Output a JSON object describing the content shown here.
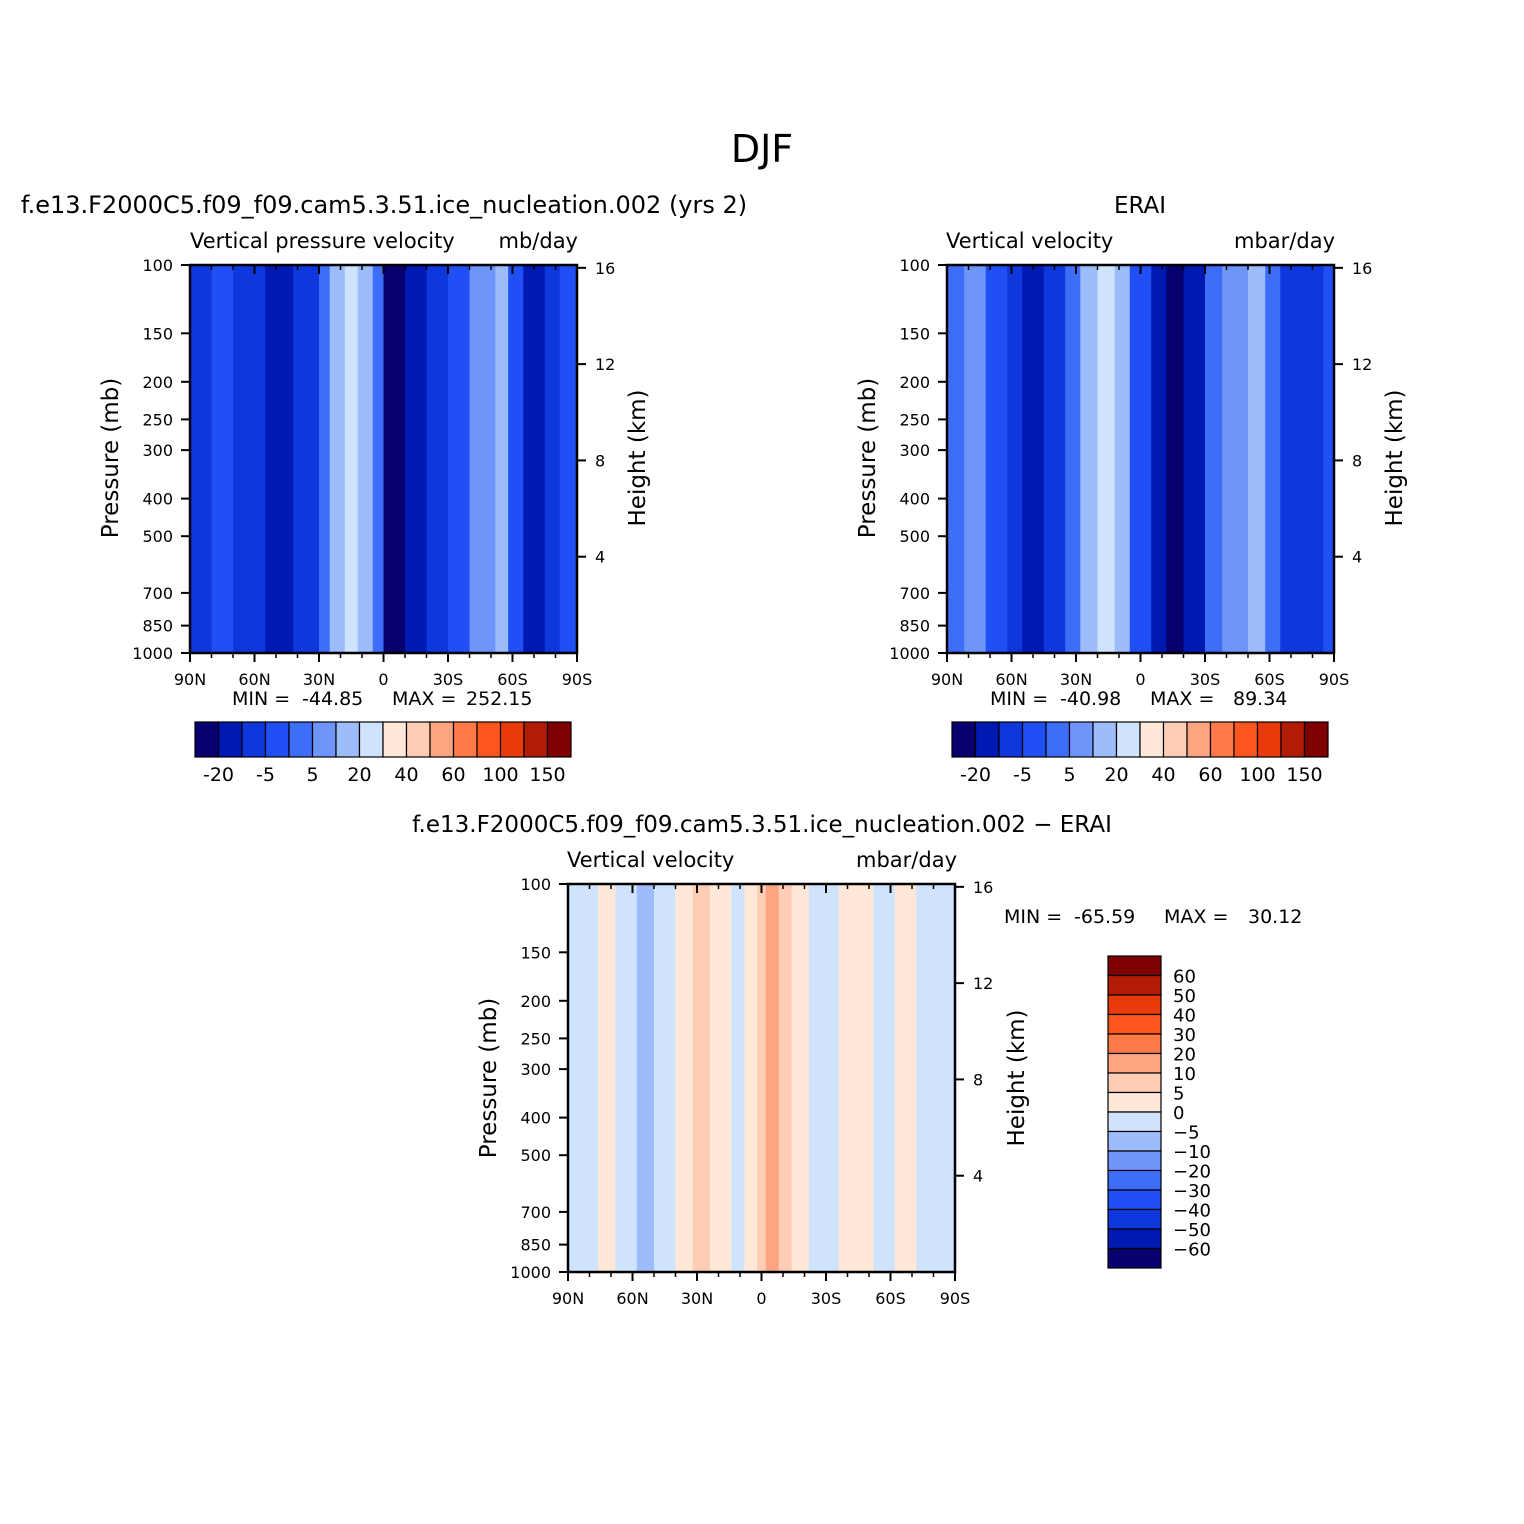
{
  "figure_title": "DJF",
  "colors": {
    "top_scale": [
      "#08006e",
      "#0019b3",
      "#0e37dc",
      "#1f4ff5",
      "#3e6ef8",
      "#6e95f9",
      "#9dbcfb",
      "#cfe3fd",
      "#ffe8d8",
      "#ffcdb3",
      "#fda480",
      "#ff7a47",
      "#ff561f",
      "#e83a0b",
      "#b31c04",
      "#7e0000"
    ],
    "diff_scale": [
      "#08006e",
      "#0019b3",
      "#0e37dc",
      "#1f4ff5",
      "#3e6ef8",
      "#6e95f9",
      "#9dbcfb",
      "#cfe3fd",
      "#ffe8d8",
      "#ffcdb3",
      "#fda480",
      "#ff7a47",
      "#ff561f",
      "#e83a0b",
      "#b31c04",
      "#7e0000"
    ]
  },
  "chart_data": [
    {
      "type": "heatmap",
      "title": "f.e13.F2000C5.f09_f09.cam5.3.51.ice_nucleation.002 (yrs 2)",
      "field_label": "Vertical pressure velocity",
      "units": "mb/day",
      "ylabel": "Pressure (mb)",
      "y2label": "Height (km)",
      "xticks": [
        "90N",
        "60N",
        "30N",
        "0",
        "30S",
        "60S",
        "90S"
      ],
      "yticks": [
        100,
        150,
        200,
        250,
        300,
        400,
        500,
        700,
        850,
        1000
      ],
      "y2ticks": [
        16,
        12,
        8,
        4
      ],
      "ylim": [
        1000,
        100
      ],
      "stats": {
        "min_label": "MIN =",
        "min": "-44.85",
        "max_label": "MAX =",
        "max": "252.15"
      },
      "colorbar": {
        "orientation": "horizontal",
        "labels": [
          "-20",
          "-5",
          "5",
          "20",
          "40",
          "60",
          "100",
          "150"
        ]
      },
      "bands_x": [
        -90,
        -80,
        -70,
        -55,
        -42,
        -30,
        -25,
        -18,
        -12,
        -5,
        0,
        10,
        20,
        30,
        40,
        52,
        58,
        65,
        75,
        82,
        90
      ],
      "bands_levels": [
        2,
        3,
        2,
        1,
        2,
        4,
        6,
        7,
        6,
        4,
        0,
        1,
        2,
        3,
        5,
        6,
        3,
        1,
        2,
        3,
        3
      ]
    },
    {
      "type": "heatmap",
      "title": "ERAI",
      "field_label": "Vertical velocity",
      "units": "mbar/day",
      "ylabel": "Pressure (mb)",
      "y2label": "Height (km)",
      "xticks": [
        "90N",
        "60N",
        "30N",
        "0",
        "30S",
        "60S",
        "90S"
      ],
      "yticks": [
        100,
        150,
        200,
        250,
        300,
        400,
        500,
        700,
        850,
        1000
      ],
      "y2ticks": [
        16,
        12,
        8,
        4
      ],
      "ylim": [
        1000,
        100
      ],
      "stats": {
        "min_label": "MIN =",
        "min": "-40.98",
        "max_label": "MAX =",
        "max": "89.34"
      },
      "colorbar": {
        "orientation": "horizontal",
        "labels": [
          "-20",
          "-5",
          "5",
          "20",
          "40",
          "60",
          "100",
          "150"
        ]
      },
      "bands_x": [
        -90,
        -82,
        -72,
        -62,
        -55,
        -45,
        -35,
        -28,
        -20,
        -12,
        -5,
        5,
        12,
        20,
        30,
        38,
        50,
        58,
        65,
        75,
        85,
        90
      ],
      "bands_levels": [
        4,
        5,
        3,
        2,
        1,
        2,
        4,
        6,
        7,
        6,
        3,
        1,
        0,
        1,
        4,
        5,
        6,
        4,
        2,
        2,
        3,
        3
      ]
    },
    {
      "type": "heatmap",
      "title": "f.e13.F2000C5.f09_f09.cam5.3.51.ice_nucleation.002 − ERAI",
      "field_label": "Vertical velocity",
      "units": "mbar/day",
      "ylabel": "Pressure (mb)",
      "y2label": "Height (km)",
      "xticks": [
        "90N",
        "60N",
        "30N",
        "0",
        "30S",
        "60S",
        "90S"
      ],
      "yticks": [
        100,
        150,
        200,
        250,
        300,
        400,
        500,
        700,
        850,
        1000
      ],
      "y2ticks": [
        16,
        12,
        8,
        4
      ],
      "ylim": [
        1000,
        100
      ],
      "stats": {
        "min_label": "MIN =",
        "min": "-65.59",
        "max_label": "MAX =",
        "max": "30.12"
      },
      "colorbar": {
        "orientation": "vertical",
        "labels": [
          "60",
          "50",
          "40",
          "30",
          "20",
          "10",
          "5",
          "0",
          "−5",
          "−10",
          "−20",
          "−30",
          "−40",
          "−50",
          "−60"
        ]
      },
      "bands_x": [
        -90,
        -76,
        -68,
        -58,
        -50,
        -40,
        -32,
        -24,
        -14,
        -8,
        -2,
        2,
        8,
        14,
        22,
        30,
        36,
        42,
        52,
        62,
        72,
        82,
        90
      ],
      "bands_levels": [
        7,
        8,
        7,
        6,
        7,
        8,
        9,
        8,
        7,
        8,
        9,
        10,
        9,
        8,
        7,
        7,
        8,
        8,
        7,
        8,
        7,
        7,
        7
      ]
    }
  ]
}
